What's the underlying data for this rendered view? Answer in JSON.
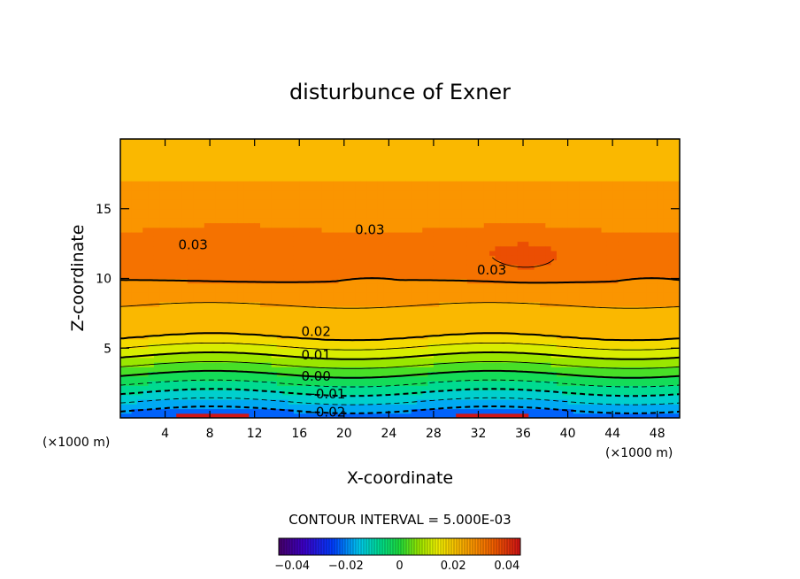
{
  "chart_data": {
    "type": "heatmap",
    "subtype": "filled-contour",
    "title": "disturbunce of Exner",
    "xlabel": "X-coordinate",
    "ylabel": "Z-coordinate",
    "x_unit_label": "(×1000 m)",
    "y_unit_label": "(×1000 m)",
    "xlim": [
      0,
      50
    ],
    "ylim": [
      0,
      20
    ],
    "xticks": [
      4,
      8,
      12,
      16,
      20,
      24,
      28,
      32,
      36,
      40,
      44,
      48
    ],
    "yticks": [
      5,
      10,
      15
    ],
    "contour_interval_text": "CONTOUR INTERVAL = 5.000E-03",
    "contour_interval": 0.005,
    "value_range": [
      -0.045,
      0.045
    ],
    "colorbar": {
      "ticks": [
        -0.04,
        -0.02,
        0,
        0.02,
        0.04
      ],
      "tick_labels": [
        "−0.04",
        "−0.02",
        "0",
        "0.02",
        "0.04"
      ]
    },
    "contour_labels": [
      {
        "text": "0.03",
        "x": 6.5,
        "z": 12.4
      },
      {
        "text": "0.03",
        "x": 22.3,
        "z": 13.5
      },
      {
        "text": "0.03",
        "x": 33.2,
        "z": 10.6
      },
      {
        "text": "0.02",
        "x": 17.5,
        "z": 6.2
      },
      {
        "text": "0.01",
        "x": 17.5,
        "z": 4.5
      },
      {
        "text": "0.00",
        "x": 17.5,
        "z": 3.0
      },
      {
        "text": "−0.01",
        "x": 18.3,
        "z": 1.7
      },
      {
        "text": "−0.02",
        "x": 18.3,
        "z": 0.4
      }
    ],
    "field_summary": {
      "bottom_value": -0.025,
      "surface_to_5km_gradient": "strong increase with height",
      "max_value": 0.035,
      "max_location_km": [
        36.5,
        11.5
      ],
      "top_value": 0.022
    },
    "colors": {
      "low": "#00c8f0",
      "mid": "#d8f000",
      "high": "#f06000",
      "contour": "#000000"
    }
  }
}
